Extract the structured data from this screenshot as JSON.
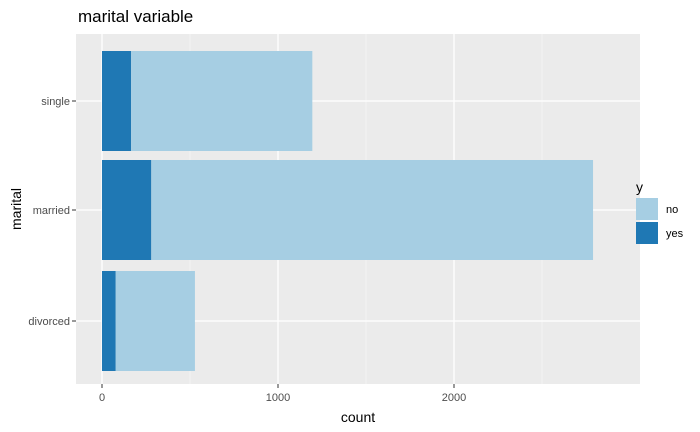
{
  "chart_data": {
    "type": "bar",
    "orientation": "horizontal",
    "stacked": true,
    "title": "marital variable",
    "xlabel": "count",
    "ylabel": "marital",
    "categories": [
      "single",
      "married",
      "divorced"
    ],
    "series": [
      {
        "name": "no",
        "values": [
          1030,
          2510,
          450
        ]
      },
      {
        "name": "yes",
        "values": [
          165,
          280,
          78
        ]
      }
    ],
    "xlim": [
      0,
      2800
    ],
    "xticks": [
      0,
      1000,
      2000
    ],
    "legend": {
      "title": "y",
      "position": "right"
    },
    "grid": true
  },
  "colors": {
    "panel_background": "#ebebeb",
    "grid_major": "#ffffff",
    "grid_minor": "#f5f5f5",
    "series": {
      "no": "#a6cee3",
      "yes": "#1f78b4"
    }
  }
}
